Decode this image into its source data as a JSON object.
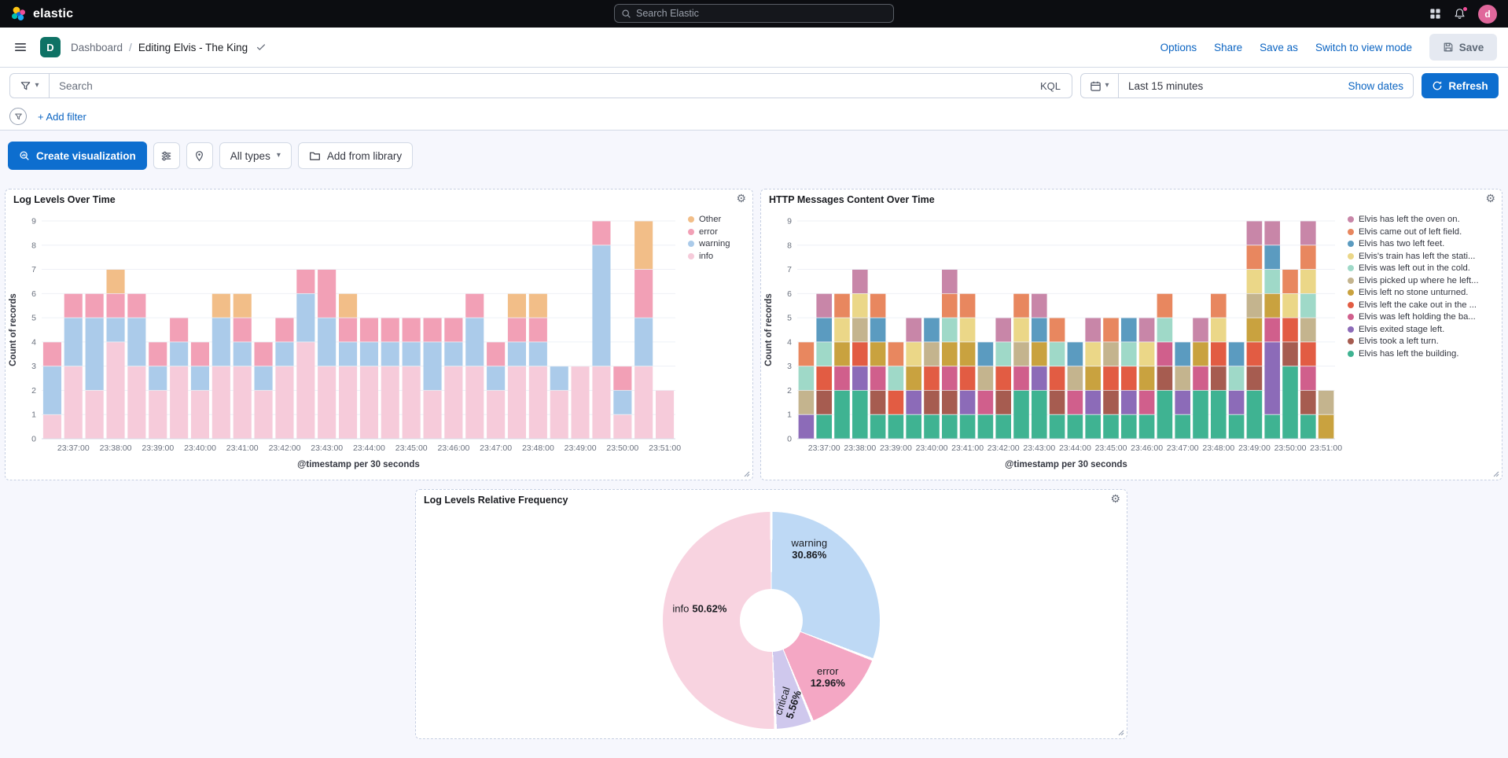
{
  "topbar": {
    "brand": "elastic",
    "search_placeholder": "Search Elastic",
    "avatar": "d"
  },
  "navbar": {
    "badge": "D",
    "breadcrumb_root": "Dashboard",
    "breadcrumb_sep": "/",
    "page_title": "Editing Elvis - The King",
    "links": {
      "options": "Options",
      "share": "Share",
      "save_as": "Save as",
      "switch_view": "Switch to view mode"
    },
    "save": "Save"
  },
  "querybar": {
    "search_placeholder": "Search",
    "kql": "KQL",
    "time_range": "Last 15 minutes",
    "show_dates": "Show dates",
    "refresh": "Refresh"
  },
  "filterbar": {
    "add_filter": "+ Add filter"
  },
  "toolbar": {
    "create_visualization": "Create visualization",
    "all_types": "All types",
    "add_from_library": "Add from library"
  },
  "colors": {
    "header_bg": "#0c0d11",
    "primary_button": "#0d6ecf",
    "link": "#0b64c2",
    "dashboard_badge": "#0e7265",
    "avatar": "#e0679b",
    "panel_border_dashed": "#c6cfe2"
  },
  "chart_data": [
    {
      "type": "bar",
      "stacked": true,
      "title": "Log Levels Over Time",
      "xlabel": "@timestamp per 30 seconds",
      "ylabel": "Count of records",
      "ylim": [
        0,
        9
      ],
      "grid": "horizontal",
      "legend_position": "right",
      "x": [
        "23:36:30",
        "23:37:00",
        "23:37:30",
        "23:38:00",
        "23:38:30",
        "23:39:00",
        "23:39:30",
        "23:40:00",
        "23:40:30",
        "23:41:00",
        "23:41:30",
        "23:42:00",
        "23:42:30",
        "23:43:00",
        "23:43:30",
        "23:44:00",
        "23:44:30",
        "23:45:00",
        "23:45:30",
        "23:46:00",
        "23:46:30",
        "23:47:00",
        "23:47:30",
        "23:48:00",
        "23:48:30",
        "23:49:00",
        "23:49:30",
        "23:50:00",
        "23:50:30",
        "23:51:00"
      ],
      "series": [
        {
          "name": "info",
          "color": "#F6CBDA",
          "values": [
            1,
            3,
            2,
            4,
            3,
            2,
            3,
            2,
            3,
            3,
            2,
            3,
            4,
            3,
            3,
            3,
            3,
            3,
            2,
            3,
            3,
            2,
            3,
            3,
            2,
            3,
            3,
            1,
            3,
            2
          ]
        },
        {
          "name": "warning",
          "color": "#ABCBEA",
          "values": [
            2,
            2,
            3,
            1,
            2,
            1,
            1,
            1,
            2,
            1,
            1,
            1,
            2,
            2,
            1,
            1,
            1,
            1,
            2,
            1,
            2,
            1,
            1,
            1,
            1,
            0,
            5,
            1,
            2,
            0
          ]
        },
        {
          "name": "error",
          "color": "#F2A0B6",
          "values": [
            1,
            1,
            1,
            1,
            1,
            1,
            1,
            1,
            0,
            1,
            1,
            1,
            1,
            2,
            1,
            1,
            1,
            1,
            1,
            1,
            1,
            1,
            1,
            1,
            0,
            0,
            1,
            1,
            2,
            0
          ]
        },
        {
          "name": "Other",
          "color": "#F2BE88",
          "values": [
            0,
            0,
            0,
            1,
            0,
            0,
            0,
            0,
            1,
            1,
            0,
            0,
            0,
            0,
            1,
            0,
            0,
            0,
            0,
            0,
            0,
            0,
            1,
            1,
            0,
            0,
            0,
            0,
            2,
            0
          ]
        }
      ],
      "legend": [
        {
          "label": "Other",
          "color": "#F2BE88"
        },
        {
          "label": "error",
          "color": "#F2A0B6"
        },
        {
          "label": "warning",
          "color": "#ABCBEA"
        },
        {
          "label": "info",
          "color": "#F6CBDA"
        }
      ]
    },
    {
      "type": "bar",
      "stacked": true,
      "title": "HTTP Messages Content Over Time",
      "xlabel": "@timestamp per 30 seconds",
      "ylabel": "Count of records",
      "ylim": [
        0,
        9
      ],
      "grid": "horizontal",
      "legend_position": "right",
      "x": [
        "23:36:30",
        "23:37:00",
        "23:37:30",
        "23:38:00",
        "23:38:30",
        "23:39:00",
        "23:39:30",
        "23:40:00",
        "23:40:30",
        "23:41:00",
        "23:41:30",
        "23:42:00",
        "23:42:30",
        "23:43:00",
        "23:43:30",
        "23:44:00",
        "23:44:30",
        "23:45:00",
        "23:45:30",
        "23:46:00",
        "23:46:30",
        "23:47:00",
        "23:47:30",
        "23:48:00",
        "23:48:30",
        "23:49:00",
        "23:49:30",
        "23:50:00",
        "23:50:30",
        "23:51:00"
      ],
      "series": [
        {
          "name": "Elvis has left the building.",
          "color": "#3FB392",
          "values": [
            0,
            1,
            2,
            2,
            1,
            1,
            1,
            1,
            1,
            1,
            1,
            1,
            2,
            2,
            1,
            1,
            1,
            1,
            1,
            1,
            2,
            1,
            2,
            2,
            1,
            2,
            1,
            3,
            1,
            0
          ]
        },
        {
          "name": "Elvis took a left turn.",
          "color": "#A65C50",
          "values": [
            0,
            1,
            0,
            0,
            1,
            0,
            0,
            1,
            1,
            0,
            0,
            1,
            0,
            0,
            1,
            0,
            0,
            1,
            0,
            0,
            1,
            0,
            0,
            1,
            0,
            1,
            0,
            1,
            1,
            0
          ]
        },
        {
          "name": "Elvis exited stage left.",
          "color": "#8C6BB8",
          "values": [
            1,
            0,
            0,
            1,
            0,
            0,
            1,
            0,
            0,
            1,
            0,
            0,
            0,
            1,
            0,
            0,
            1,
            0,
            1,
            0,
            0,
            1,
            0,
            0,
            1,
            0,
            3,
            0,
            0,
            0
          ]
        },
        {
          "name": "Elvis was left holding the ba...",
          "color": "#D05F8C",
          "values": [
            0,
            0,
            1,
            0,
            1,
            0,
            0,
            0,
            1,
            0,
            1,
            0,
            1,
            0,
            0,
            1,
            0,
            0,
            0,
            1,
            1,
            0,
            1,
            0,
            0,
            0,
            1,
            0,
            1,
            0
          ]
        },
        {
          "name": "Elvis left the cake out in the ...",
          "color": "#E25C43",
          "values": [
            0,
            1,
            0,
            1,
            0,
            1,
            0,
            1,
            0,
            1,
            0,
            1,
            0,
            0,
            1,
            0,
            0,
            1,
            1,
            0,
            0,
            0,
            0,
            1,
            0,
            1,
            0,
            1,
            1,
            0
          ]
        },
        {
          "name": "Elvis left no stone unturned.",
          "color": "#C9A23F",
          "values": [
            0,
            0,
            1,
            0,
            1,
            0,
            1,
            0,
            1,
            1,
            0,
            0,
            0,
            1,
            0,
            0,
            1,
            0,
            0,
            1,
            0,
            0,
            1,
            0,
            0,
            1,
            1,
            0,
            0,
            1
          ]
        },
        {
          "name": "Elvis picked up where he left...",
          "color": "#C4B48E",
          "values": [
            1,
            0,
            0,
            1,
            0,
            0,
            0,
            1,
            0,
            0,
            1,
            0,
            1,
            0,
            0,
            1,
            0,
            1,
            0,
            0,
            0,
            1,
            0,
            0,
            0,
            1,
            0,
            0,
            1,
            1
          ]
        },
        {
          "name": "Elvis was left out in the cold.",
          "color": "#9FD9C8",
          "values": [
            1,
            1,
            0,
            0,
            0,
            1,
            0,
            0,
            1,
            0,
            0,
            1,
            0,
            0,
            1,
            0,
            0,
            0,
            1,
            0,
            1,
            0,
            0,
            0,
            1,
            0,
            1,
            0,
            1,
            0
          ]
        },
        {
          "name": "Elvis's train has left the stati...",
          "color": "#EBD788",
          "values": [
            0,
            0,
            1,
            1,
            0,
            0,
            1,
            0,
            0,
            1,
            0,
            0,
            1,
            0,
            0,
            0,
            1,
            0,
            0,
            1,
            0,
            0,
            0,
            1,
            0,
            1,
            0,
            1,
            1,
            0
          ]
        },
        {
          "name": "Elvis has two left feet.",
          "color": "#5B9BC0",
          "values": [
            0,
            1,
            0,
            0,
            1,
            0,
            0,
            1,
            0,
            0,
            1,
            0,
            0,
            1,
            0,
            1,
            0,
            0,
            1,
            0,
            0,
            1,
            0,
            0,
            1,
            0,
            1,
            0,
            0,
            0
          ]
        },
        {
          "name": "Elvis came out of left field.",
          "color": "#E8875F",
          "values": [
            1,
            0,
            1,
            0,
            1,
            1,
            0,
            0,
            1,
            1,
            0,
            0,
            1,
            0,
            1,
            0,
            0,
            1,
            0,
            0,
            1,
            0,
            0,
            1,
            0,
            1,
            0,
            1,
            1,
            0
          ]
        },
        {
          "name": "Elvis has left the oven on.",
          "color": "#C886A8",
          "values": [
            0,
            1,
            0,
            1,
            0,
            0,
            1,
            0,
            1,
            0,
            0,
            1,
            0,
            1,
            0,
            0,
            1,
            0,
            0,
            1,
            0,
            0,
            1,
            0,
            0,
            1,
            1,
            0,
            1,
            0
          ]
        }
      ],
      "legend": [
        {
          "label": "Elvis has left the oven on.",
          "color": "#C886A8"
        },
        {
          "label": "Elvis came out of left field.",
          "color": "#E8875F"
        },
        {
          "label": "Elvis has two left feet.",
          "color": "#5B9BC0"
        },
        {
          "label": "Elvis's train has left the stati...",
          "color": "#EBD788"
        },
        {
          "label": "Elvis was left out in the cold.",
          "color": "#9FD9C8"
        },
        {
          "label": "Elvis picked up where he left...",
          "color": "#C4B48E"
        },
        {
          "label": "Elvis left no stone unturned.",
          "color": "#C9A23F"
        },
        {
          "label": "Elvis left the cake out in the ...",
          "color": "#E25C43"
        },
        {
          "label": "Elvis was left holding the ba...",
          "color": "#D05F8C"
        },
        {
          "label": "Elvis exited stage left.",
          "color": "#8C6BB8"
        },
        {
          "label": "Elvis took a left turn.",
          "color": "#A65C50"
        },
        {
          "label": "Elvis has left the building.",
          "color": "#3FB392"
        }
      ]
    },
    {
      "type": "pie",
      "donut": true,
      "title": "Log Levels Relative Frequency",
      "slices": [
        {
          "label": "warning",
          "value": 30.86,
          "pct": "30.86%",
          "color": "#BED9F5"
        },
        {
          "label": "error",
          "value": 12.96,
          "pct": "12.96%",
          "color": "#F4A7C4"
        },
        {
          "label": "critical",
          "value": 5.56,
          "pct": "5.56%",
          "color": "#CFC8ED"
        },
        {
          "label": "info",
          "value": 50.62,
          "pct": "50.62%",
          "color": "#F8D3E0"
        }
      ]
    }
  ]
}
